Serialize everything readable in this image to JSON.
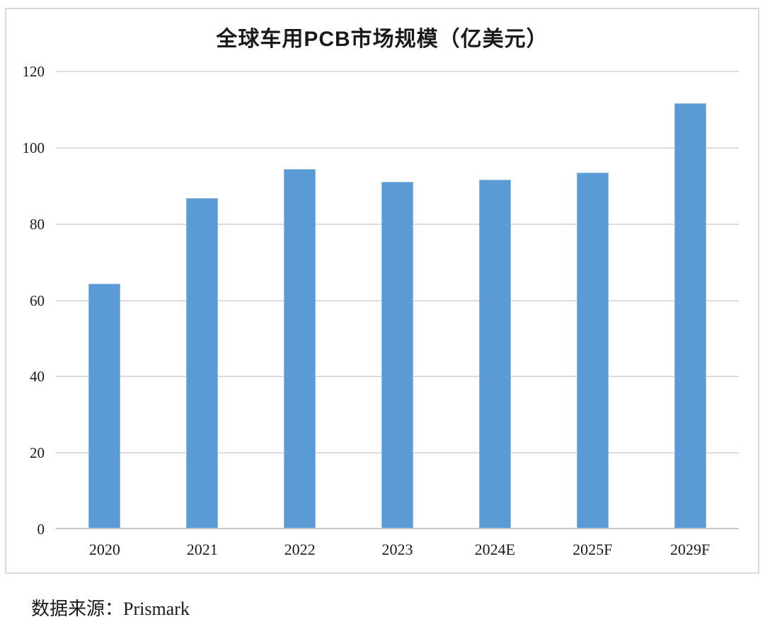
{
  "chart_data": {
    "type": "bar",
    "title": "全球车用PCB市场规模（亿美元）",
    "categories": [
      "2020",
      "2021",
      "2022",
      "2023",
      "2024E",
      "2025F",
      "2029F"
    ],
    "values": [
      64,
      86.5,
      94,
      90.7,
      91.3,
      93.2,
      111.3
    ],
    "xlabel": "",
    "ylabel": "",
    "ylim": [
      0,
      120
    ],
    "yticks": [
      0,
      20,
      40,
      60,
      80,
      100,
      120
    ],
    "grid": true,
    "legend": false,
    "bar_color": "#5B9BD5",
    "bar_edge_color": "#8db9e2",
    "gridline_color": "#dcdcdc",
    "axis_color": "#c6c6c6",
    "frame_border_color": "#d9d9d9"
  },
  "source": {
    "text": "数据来源：Prismark"
  }
}
